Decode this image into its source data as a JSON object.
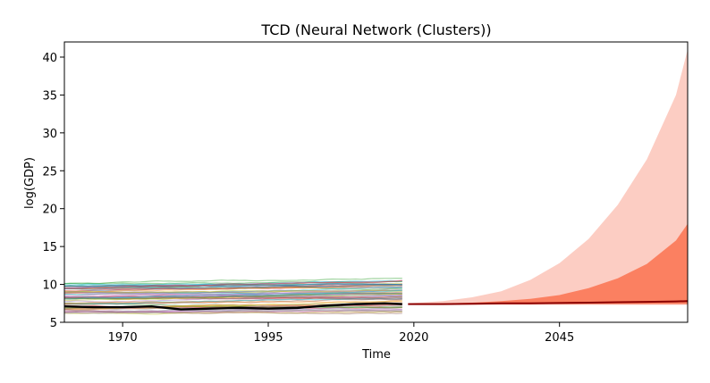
{
  "chart_data": {
    "type": "line",
    "title": "TCD (Neural Network (Clusters))",
    "xlabel": "Time",
    "ylabel": "log(GDP)",
    "xlim": [
      1960,
      2067
    ],
    "ylim": [
      5,
      42
    ],
    "xticks": [
      1970,
      1995,
      2020,
      2045
    ],
    "yticks": [
      5,
      10,
      15,
      20,
      25,
      30,
      35,
      40
    ],
    "grid": false,
    "legend": "none",
    "history": {
      "years": [
        1960,
        1965,
        1970,
        1975,
        1980,
        1985,
        1990,
        1995,
        2000,
        2005,
        2010,
        2015,
        2018
      ],
      "focus_country": [
        7.1,
        7.0,
        7.0,
        7.1,
        6.7,
        6.8,
        6.9,
        6.8,
        6.9,
        7.2,
        7.4,
        7.5,
        7.4
      ],
      "background_country_count": 60
    },
    "forecast": {
      "years": [
        2019,
        2025,
        2030,
        2035,
        2040,
        2045,
        2050,
        2055,
        2060,
        2065,
        2067
      ],
      "median": [
        7.4,
        7.4,
        7.45,
        7.5,
        7.5,
        7.55,
        7.6,
        7.65,
        7.7,
        7.75,
        7.8
      ],
      "inner_lower": [
        7.4,
        7.4,
        7.4,
        7.4,
        7.4,
        7.4,
        7.4,
        7.4,
        7.4,
        7.4,
        7.4
      ],
      "inner_upper": [
        7.4,
        7.5,
        7.6,
        7.8,
        8.1,
        8.6,
        9.5,
        10.8,
        12.7,
        15.8,
        18.0
      ],
      "outer_lower": [
        7.3,
        7.3,
        7.3,
        7.3,
        7.3,
        7.3,
        7.3,
        7.3,
        7.3,
        7.3,
        7.3
      ],
      "outer_upper": [
        7.5,
        7.8,
        8.3,
        9.1,
        10.6,
        12.8,
        16.0,
        20.5,
        26.5,
        35.0,
        41.0
      ]
    },
    "colors": {
      "focus_line": "#000000",
      "forecast_line": "#8b0000",
      "inner_band": "#fb7b5c",
      "outer_band": "#fcc8bd"
    }
  }
}
